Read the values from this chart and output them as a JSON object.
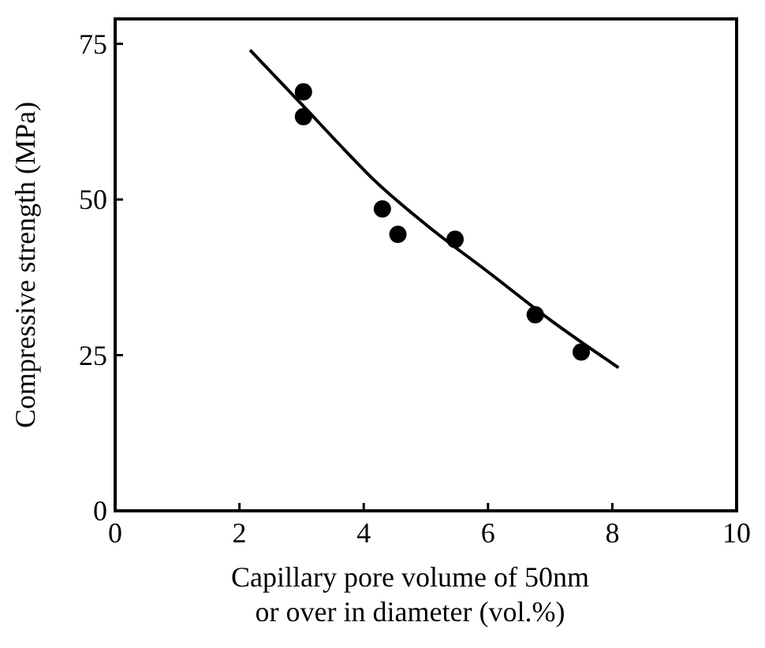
{
  "chart_data": {
    "type": "scatter",
    "xlabel": "Capillary pore volume of 50nm\nor over in diameter (vol.%)",
    "ylabel": "Compressive strength (MPa)",
    "xlim": [
      0,
      10
    ],
    "ylim": [
      0,
      79
    ],
    "xticks": [
      0,
      2,
      4,
      6,
      8,
      10
    ],
    "yticks": [
      0,
      25,
      50,
      75
    ],
    "grid": false,
    "series": [
      {
        "color": "#000000",
        "marker": "circle",
        "x": [
          3.03,
          3.03,
          4.3,
          4.55,
          5.47,
          6.76,
          7.5
        ],
        "values": [
          67.3,
          63.3,
          48.5,
          44.4,
          43.6,
          31.5,
          25.5
        ]
      },
      {
        "type": "line",
        "color": "#000000",
        "marker": "none",
        "x": [
          2.17,
          3.03,
          3.67,
          4.17,
          5.01,
          6.01,
          7.01,
          8.1
        ],
        "values": [
          74,
          65,
          58.2,
          53.1,
          45.9,
          38.3,
          30.6,
          23
        ]
      }
    ]
  }
}
